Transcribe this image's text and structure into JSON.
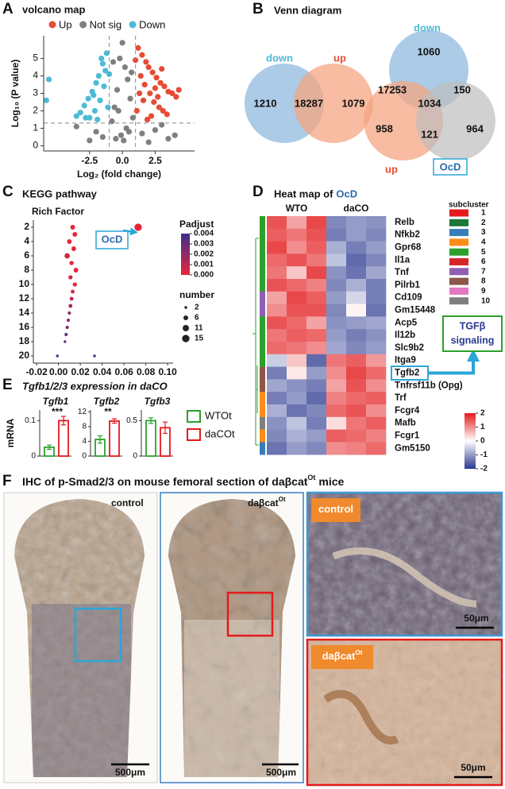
{
  "letters": [
    "A",
    "B",
    "C",
    "D",
    "E",
    "F"
  ],
  "chart_data": [
    {
      "type": "scatter",
      "title": "volcano map",
      "x_label": "Log₂ (fold change)",
      "y_label": "Log₁₀ (P value)",
      "series": [
        {
          "name": "Up",
          "color": "#e64b35",
          "x": [
            1.2,
            1.5,
            1.8,
            2.0,
            2.3,
            2.6,
            2.9,
            3.2,
            3.5,
            3.8,
            4.1,
            1.4,
            1.7,
            2.1,
            2.4,
            2.8,
            3.1,
            3.4,
            1.1,
            1.3,
            1.6,
            2.2,
            2.7,
            3.0,
            4.3,
            1.0,
            1.9,
            2.5
          ],
          "values": [
            5.6,
            5.2,
            4.8,
            4.5,
            4.2,
            3.9,
            3.6,
            3.4,
            3.1,
            3.0,
            2.8,
            4.0,
            3.5,
            3.0,
            2.5,
            2.2,
            2.0,
            1.8,
            2.0,
            3.0,
            2.6,
            1.7,
            2.8,
            4.4,
            3.2,
            4.9,
            1.5,
            3.3
          ]
        },
        {
          "name": "Not sig",
          "color": "#7f7f7f",
          "x": [
            0,
            0.2,
            -0.2,
            0.4,
            -0.4,
            0.6,
            -0.6,
            0.8,
            -0.8,
            0.1,
            -0.1,
            0.3,
            -0.3,
            0.5,
            -0.5,
            1.5,
            -1.5,
            2.5,
            -2.5,
            3.5,
            -3.5,
            2.0,
            -2.0,
            3.0,
            4.0,
            0.7,
            -0.7
          ],
          "values": [
            5.9,
            4.5,
            5.0,
            3.8,
            3.2,
            2.7,
            2.2,
            1.6,
            1.4,
            0.3,
            0.6,
            1.0,
            2.0,
            0.8,
            0.4,
            0.7,
            0.5,
            0.9,
            0.3,
            0.4,
            1.1,
            0.2,
            0.8,
            1.2,
            0.6,
            4.2,
            4.8
          ]
        },
        {
          "name": "Down",
          "color": "#4dbbd5",
          "x": [
            -1.2,
            -1.5,
            -1.8,
            -2.0,
            -2.3,
            -2.6,
            -2.9,
            -3.2,
            -1.4,
            -1.7,
            -2.1,
            -2.5,
            -1.1,
            -1.3,
            -1.9,
            -2.8,
            -5.6,
            -5.8,
            -3.5,
            -1.6,
            -2.2,
            -1.0
          ],
          "values": [
            5.3,
            4.7,
            4.0,
            3.6,
            3.1,
            2.7,
            2.3,
            1.9,
            3.4,
            2.6,
            2.0,
            1.6,
            2.2,
            4.3,
            1.5,
            1.6,
            3.8,
            2.6,
            1.7,
            5.0,
            2.9,
            4.1
          ]
        }
      ],
      "xlim": [
        -6,
        5.5
      ],
      "ylim": [
        -0.3,
        6.3
      ],
      "xticks": [
        -2.5,
        {
          "value": 0,
          "label": "0.0"
        },
        2.5
      ],
      "yticks": [
        0,
        1,
        2,
        3,
        4,
        5
      ],
      "cutoff_x": [
        -1,
        1
      ],
      "cutoff_y": 1.3
    },
    {
      "type": "scatter",
      "title": "KEGG pathway",
      "subtitle": "Rich Factor",
      "x": [
        0.073,
        0.013,
        0.015,
        0.01,
        0.014,
        0.008,
        0.012,
        0.016,
        0.011,
        0.015,
        0.013,
        0.012,
        0.011,
        0.01,
        0.009,
        0.008,
        0.007,
        0.006,
        -0.001,
        0.033
      ],
      "values": [
        2,
        2,
        3,
        4,
        5,
        6,
        7,
        8,
        9,
        10,
        11,
        12,
        13,
        14,
        15,
        16,
        17,
        18,
        20,
        20
      ],
      "padjust": [
        0,
        0,
        0,
        0,
        0,
        0.0005,
        0,
        0,
        0.0005,
        0,
        0.0005,
        0.001,
        0.0015,
        0.002,
        0.002,
        0.0025,
        0.003,
        0.003,
        0.004,
        0.004
      ],
      "sizes": [
        15,
        6,
        6,
        6,
        6,
        8,
        5,
        6,
        5,
        5,
        4,
        4,
        4,
        3,
        3,
        3,
        3,
        2,
        2,
        2
      ],
      "xlim": [
        -0.023,
        0.105
      ],
      "ylim": [
        21,
        1
      ],
      "xticks": [
        -0.02,
        {
          "value": 0,
          "label": "0.00"
        },
        0.02,
        0.04,
        0.06,
        0.08,
        {
          "value": 0.1,
          "label": "0.10"
        }
      ],
      "yticks": [
        2,
        4,
        6,
        8,
        10,
        12,
        14,
        16,
        18,
        20
      ],
      "color_legend": {
        "title": "Padjust",
        "ticks": [
          0.004,
          0.003,
          0.002,
          0.001,
          {
            "value": 0,
            "label": "0.000"
          }
        ],
        "range": [
          0.004,
          0
        ],
        "colors": [
          "#3b2f8f",
          "#e8253a"
        ]
      },
      "size_legend": {
        "title": "number",
        "ticks": [
          2,
          6,
          11,
          15
        ]
      },
      "annotation": "OcD"
    },
    {
      "type": "heatmap",
      "title": "Heat map of",
      "title_term": "OcD",
      "groups": [
        "WTO",
        "daCO"
      ],
      "rows": [
        "Relb",
        "Nfkb2",
        "Gpr68",
        "Il1a",
        "Tnf",
        "Pilrb1",
        "Cd109",
        "Gm15448",
        "Acp5",
        "Il12b",
        "Slc9b2",
        "Itga9",
        "Tgfb2",
        "Tnfrsf11b (Opg)",
        "Trf",
        "Fcgr4",
        "Mafb",
        "Fcgr1",
        "Gm5150"
      ],
      "subcluster": [
        5,
        5,
        5,
        5,
        5,
        5,
        7,
        7,
        5,
        5,
        5,
        5,
        8,
        8,
        4,
        4,
        10,
        4,
        3
      ],
      "values": [
        [
          1.5,
          0.8,
          1.6,
          -1.2,
          -1.0,
          -1.1
        ],
        [
          1.4,
          1.2,
          1.5,
          -1.3,
          -1.0,
          -1.2
        ],
        [
          1.6,
          1.0,
          1.4,
          -0.8,
          -1.3,
          -1.0
        ],
        [
          1.3,
          1.5,
          1.2,
          -0.6,
          -1.5,
          -1.2
        ],
        [
          1.2,
          0.5,
          1.6,
          -1.1,
          -1.4,
          -0.9
        ],
        [
          1.5,
          1.3,
          1.1,
          -1.2,
          -0.8,
          -1.3
        ],
        [
          0.8,
          1.6,
          1.4,
          -1.0,
          -0.4,
          -1.3
        ],
        [
          1.0,
          1.5,
          1.5,
          -1.2,
          0.1,
          -1.4
        ],
        [
          1.5,
          1.3,
          0.8,
          -1.1,
          -1.0,
          -0.9
        ],
        [
          1.2,
          1.4,
          1.3,
          -1.0,
          -1.3,
          -1.1
        ],
        [
          1.3,
          1.2,
          1.0,
          -0.9,
          -1.2,
          -1.0
        ],
        [
          -0.5,
          0.5,
          -1.5,
          1.2,
          1.4,
          0.9
        ],
        [
          -1.3,
          0.2,
          -1.0,
          1.0,
          1.6,
          1.3
        ],
        [
          -0.9,
          -1.1,
          -1.3,
          0.8,
          1.5,
          1.0
        ],
        [
          -1.3,
          -1.0,
          -1.5,
          1.1,
          1.3,
          1.4
        ],
        [
          -0.8,
          -1.4,
          -1.2,
          1.3,
          1.5,
          1.0
        ],
        [
          -1.1,
          -0.6,
          -1.3,
          0.3,
          1.2,
          1.4
        ],
        [
          -1.2,
          -0.8,
          -1.0,
          1.4,
          1.3,
          1.1
        ],
        [
          -1.4,
          -1.0,
          -1.2,
          1.0,
          1.1,
          1.3
        ]
      ],
      "zlim": [
        -2,
        2
      ],
      "colorbar_ticks": [
        2,
        1,
        0,
        -1,
        -2
      ],
      "colors": [
        "#2b3990",
        "#ffffff",
        "#e31a1c"
      ],
      "subcluster_legend": {
        "title": "subcluster",
        "names": [
          1,
          2,
          3,
          4,
          5,
          6,
          7,
          8,
          9,
          10
        ],
        "colors": [
          "#e41a1c",
          "#1b7837",
          "#377eb8",
          "#ff8c1a",
          "#2ca02c",
          "#d62728",
          "#8e5fb4",
          "#8c564b",
          "#e377c2",
          "#7f7f7f"
        ]
      },
      "highlight_row": 12,
      "annotation": [
        "TGFβ",
        "signaling"
      ]
    },
    {
      "type": "bar",
      "title": "Tgfb1/2/3 expression in daCO",
      "y_label": "mRNA",
      "series": [
        {
          "name": "WTOt",
          "color": "#2ca02c"
        },
        {
          "name": "daCOt",
          "color": "#e31a1c"
        }
      ],
      "subplots": [
        {
          "title": "Tgfb1",
          "values": [
            0.025,
            0.1
          ],
          "errors": [
            0.006,
            0.012
          ],
          "ylim": [
            0,
            0.13
          ],
          "yticks": [
            0,
            0.1
          ],
          "significance": "***"
        },
        {
          "title": "Tgfb2",
          "values": [
            4.5,
            9.5
          ],
          "errors": [
            1.0,
            0.6
          ],
          "ylim": [
            0,
            12.5
          ],
          "yticks": [
            0,
            4,
            8,
            12
          ],
          "significance": "**"
        },
        {
          "title": "Tgfb3",
          "values": [
            0.5,
            0.4
          ],
          "errors": [
            0.04,
            0.08
          ],
          "ylim": [
            0,
            0.65
          ],
          "yticks": [
            0,
            0.5
          ]
        }
      ]
    }
  ],
  "venn": {
    "title": "Venn diagram",
    "left": {
      "labels": [
        "down",
        "up"
      ],
      "counts": [
        1210,
        18287,
        1079
      ]
    },
    "right": {
      "labels": [
        "down",
        "up",
        "OcD"
      ],
      "counts": [
        1060,
        17253,
        1034,
        150,
        958,
        121,
        964
      ]
    }
  },
  "ihc": {
    "title": [
      "IHC of p-Smad2/3 on mouse femoral section of daβcat",
      "Ot",
      "mice"
    ],
    "panels": [
      {
        "label": [
          "control"
        ],
        "scale": "500μm"
      },
      {
        "label": [
          "daβcat",
          "Ot"
        ],
        "scale": "500μm"
      },
      {
        "label": [
          "control"
        ],
        "scale": "50μm"
      },
      {
        "label": [
          "daβcat",
          "Ot"
        ],
        "scale": "50μm"
      }
    ]
  }
}
